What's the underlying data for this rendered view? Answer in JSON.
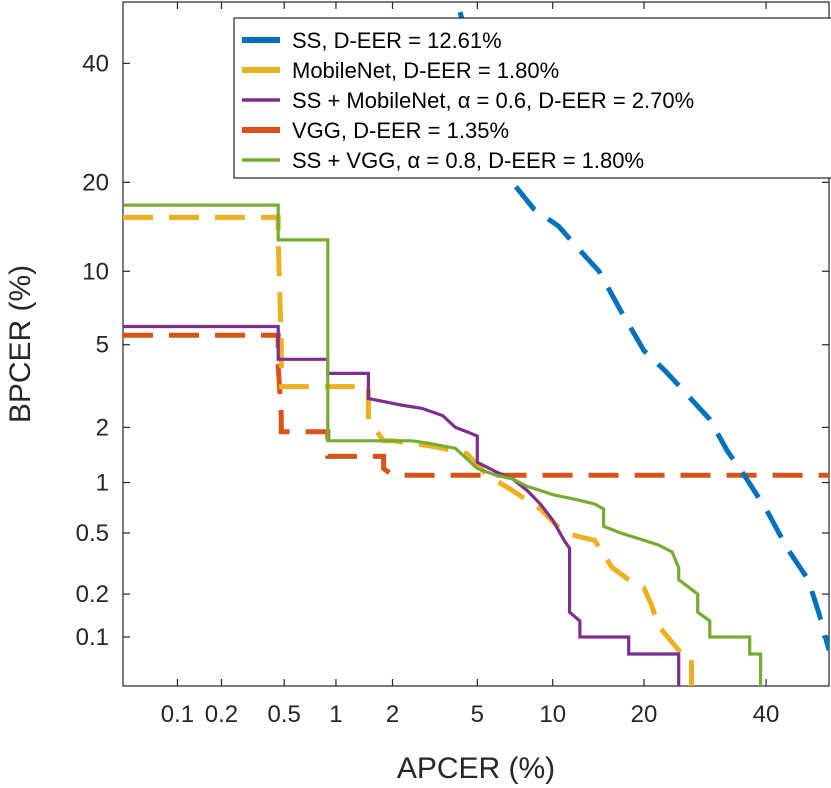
{
  "chart_data": {
    "type": "line",
    "title": "",
    "xlabel": "APCER (%)",
    "ylabel": "BPCER (%)",
    "xscale": "probit",
    "yscale": "probit",
    "xlim": [
      0.04,
      52
    ],
    "ylim": [
      0.043,
      52
    ],
    "x_ticks": [
      0.1,
      0.2,
      0.5,
      1,
      2,
      5,
      10,
      20,
      40
    ],
    "x_tick_labels": [
      "0.1",
      "0.2",
      "0.5",
      "1",
      "2",
      "5",
      "10",
      "20",
      "40"
    ],
    "y_ticks": [
      0.1,
      0.2,
      0.5,
      1,
      2,
      5,
      10,
      20,
      40
    ],
    "y_tick_labels": [
      "0.1",
      "0.2",
      "0.5",
      "1",
      "2",
      "5",
      "10",
      "20",
      "40"
    ],
    "grid": false,
    "legend_position": "top-right",
    "series": [
      {
        "name": "SS",
        "legend": "SS, D-EER = 12.61%",
        "color": "#0072BD",
        "style": "dashed",
        "x": [
          4.2,
          5.5,
          7.0,
          8.5,
          10.5,
          12.0,
          14.5,
          17.0,
          20.0,
          23.0,
          26.0,
          30.0,
          33.0,
          36.0,
          40.0,
          44.0,
          48.0,
          50.0,
          52.0
        ],
        "y": [
          50.0,
          30.0,
          20.0,
          16.5,
          14.5,
          12.5,
          10.0,
          7.0,
          4.7,
          3.8,
          3.0,
          2.2,
          1.5,
          1.1,
          0.7,
          0.4,
          0.25,
          0.15,
          0.08
        ]
      },
      {
        "name": "MobileNet",
        "legend": "MobileNet, D-EER = 1.80%",
        "color": "#EDB120",
        "style": "dashed",
        "x": [
          0.04,
          0.46,
          0.46,
          0.48,
          0.48,
          0.6,
          1.5,
          1.5,
          1.8,
          2.0,
          2.5,
          3.0,
          3.5,
          4.5,
          5.5,
          7.0,
          9.0,
          11.0,
          14.0,
          16.0,
          18.0,
          20.0,
          21.0,
          22.0,
          25.0,
          26.0,
          27.0,
          27.0
        ],
        "y": [
          15.5,
          15.5,
          13.0,
          5.0,
          3.2,
          3.2,
          3.2,
          2.2,
          1.7,
          1.7,
          1.65,
          1.6,
          1.55,
          1.45,
          1.1,
          0.9,
          0.7,
          0.5,
          0.45,
          0.3,
          0.25,
          0.22,
          0.17,
          0.12,
          0.08,
          0.07,
          0.07,
          0.043
        ]
      },
      {
        "name": "SS + MobileNet",
        "legend": "SS + MobileNet, α = 0.6, D-EER = 2.70%",
        "color": "#7E2F8E",
        "style": "solid",
        "x": [
          0.04,
          0.46,
          0.46,
          0.9,
          0.9,
          1.5,
          1.5,
          2.2,
          2.8,
          3.5,
          4.0,
          4.5,
          5.0,
          5.0,
          6.0,
          7.0,
          8.0,
          9.0,
          10.0,
          11.0,
          11.5,
          11.5,
          12.5,
          12.5,
          15.0,
          18.0,
          18.0,
          25.0,
          25.0
        ],
        "y": [
          6.0,
          6.0,
          4.3,
          4.3,
          3.7,
          3.7,
          2.8,
          2.6,
          2.5,
          2.3,
          2.0,
          1.9,
          1.8,
          1.3,
          1.15,
          1.05,
          0.9,
          0.75,
          0.6,
          0.45,
          0.4,
          0.15,
          0.13,
          0.1,
          0.1,
          0.1,
          0.075,
          0.075,
          0.043
        ]
      },
      {
        "name": "VGG",
        "legend": "VGG, D-EER = 1.35%",
        "color": "#D95319",
        "style": "dashed",
        "x": [
          0.04,
          0.46,
          0.46,
          0.48,
          0.48,
          0.9,
          0.9,
          1.8,
          1.8,
          2.0,
          52.0
        ],
        "y": [
          5.5,
          5.5,
          4.0,
          2.3,
          1.9,
          1.9,
          1.4,
          1.4,
          1.2,
          1.1,
          1.1
        ]
      },
      {
        "name": "SS + VGG",
        "legend": "SS + VGG, α = 0.8, D-EER = 1.80%",
        "color": "#77AC30",
        "style": "solid",
        "x": [
          0.04,
          0.46,
          0.46,
          0.9,
          0.9,
          1.0,
          2.5,
          3.0,
          4.0,
          5.0,
          6.0,
          7.0,
          8.0,
          9.0,
          10.0,
          12.0,
          14.0,
          15.0,
          15.0,
          17.0,
          20.0,
          22.0,
          24.0,
          25.0,
          25.0,
          28.0,
          28.0,
          30.0,
          30.0,
          37.0,
          37.0,
          39.0,
          39.0
        ],
        "y": [
          17.0,
          17.0,
          13.0,
          13.0,
          1.7,
          1.7,
          1.7,
          1.65,
          1.55,
          1.2,
          1.1,
          1.05,
          0.95,
          0.9,
          0.85,
          0.8,
          0.75,
          0.7,
          0.55,
          0.5,
          0.45,
          0.42,
          0.38,
          0.3,
          0.25,
          0.2,
          0.15,
          0.13,
          0.1,
          0.1,
          0.075,
          0.075,
          0.043
        ]
      }
    ]
  }
}
